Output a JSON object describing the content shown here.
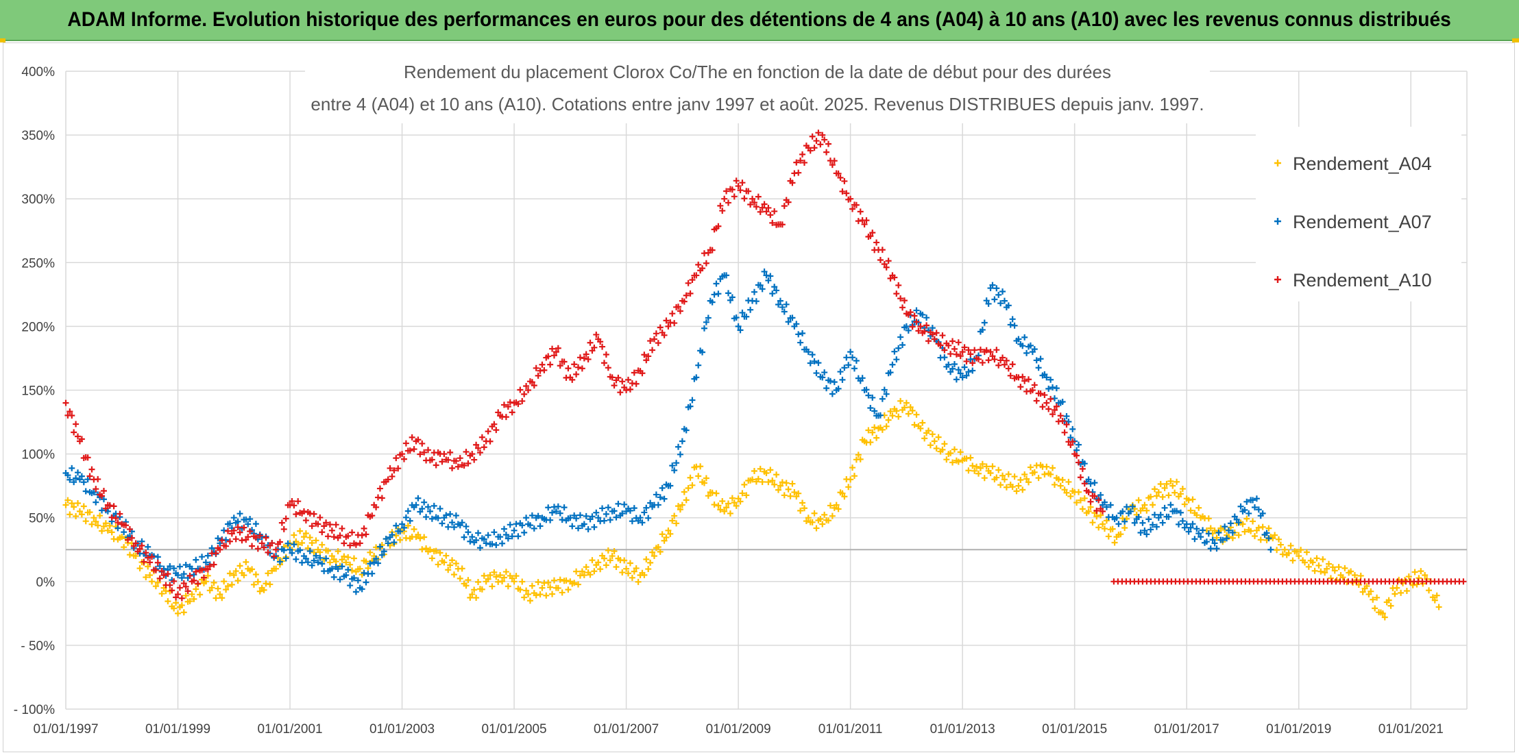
{
  "banner": {
    "text": "ADAM Informe. Evolution historique des performances en euros pour des détentions de 4 ans (A04) à 10 ans (A10) avec les revenus connus distribués"
  },
  "chart_data": {
    "type": "scatter",
    "title_lines": [
      "Rendement du placement Clorox Co/The en fonction de la date de début pour des durées",
      "entre 4 (A04) et 10 ans (A10). Cotations entre janv 1997 et août. 2025. Revenus DISTRIBUES depuis janv. 1997."
    ],
    "xlabel": "",
    "ylabel": "",
    "x_range": [
      1997.0,
      2022.0
    ],
    "ylim": [
      -100,
      400
    ],
    "y_ticks": [
      "400%",
      "350%",
      "300%",
      "250%",
      "200%",
      "150%",
      "100%",
      "50%",
      "0%",
      "- 50%",
      "- 100%"
    ],
    "x_tick_labels": [
      "01/01/1997",
      "01/01/1999",
      "01/01/2001",
      "01/01/2003",
      "01/01/2005",
      "01/01/2007",
      "01/01/2009",
      "01/01/2011",
      "01/01/2013",
      "01/01/2015",
      "01/01/2017",
      "01/01/2019",
      "01/01/2021"
    ],
    "x_tick_years": [
      1997,
      1999,
      2001,
      2003,
      2005,
      2007,
      2009,
      2011,
      2013,
      2015,
      2017,
      2019,
      2021
    ],
    "grid": true,
    "reference_line": 25,
    "legend_position": "right",
    "marker": "+",
    "series": [
      {
        "name": "Rendement_A04",
        "color": "#ffc000",
        "x": [
          1997.0,
          1997.25,
          1997.5,
          1997.75,
          1998.0,
          1998.25,
          1998.5,
          1998.75,
          1999.0,
          1999.25,
          1999.5,
          1999.75,
          2000.0,
          2000.25,
          2000.5,
          2000.75,
          2001.0,
          2001.25,
          2001.5,
          2001.75,
          2002.0,
          2002.25,
          2002.5,
          2002.75,
          2003.0,
          2003.25,
          2003.5,
          2003.75,
          2004.0,
          2004.25,
          2004.5,
          2004.75,
          2005.0,
          2005.25,
          2005.5,
          2005.75,
          2006.0,
          2006.25,
          2006.5,
          2006.75,
          2007.0,
          2007.25,
          2007.5,
          2007.75,
          2008.0,
          2008.25,
          2008.5,
          2008.75,
          2009.0,
          2009.25,
          2009.5,
          2009.75,
          2010.0,
          2010.25,
          2010.5,
          2010.75,
          2011.0,
          2011.25,
          2011.5,
          2011.75,
          2012.0,
          2012.25,
          2012.5,
          2012.75,
          2013.0,
          2013.25,
          2013.5,
          2013.75,
          2014.0,
          2014.25,
          2014.5,
          2014.75,
          2015.0,
          2015.25,
          2015.5,
          2015.75,
          2016.0,
          2016.25,
          2016.5,
          2016.75,
          2017.0,
          2017.25,
          2017.5,
          2017.75,
          2018.0,
          2018.25,
          2018.5,
          2018.75,
          2019.0,
          2019.25,
          2019.5,
          2019.75,
          2020.0,
          2020.25,
          2020.5,
          2020.75,
          2021.0,
          2021.25,
          2021.5
        ],
        "y": [
          60,
          55,
          50,
          40,
          35,
          20,
          5,
          -5,
          -25,
          -10,
          0,
          -10,
          5,
          10,
          -5,
          10,
          30,
          35,
          25,
          20,
          15,
          10,
          20,
          30,
          40,
          35,
          25,
          15,
          10,
          -10,
          0,
          5,
          0,
          -10,
          -5,
          -5,
          0,
          5,
          15,
          20,
          10,
          5,
          20,
          40,
          60,
          90,
          70,
          55,
          65,
          80,
          85,
          75,
          70,
          50,
          45,
          60,
          80,
          110,
          120,
          130,
          140,
          120,
          110,
          100,
          95,
          90,
          85,
          80,
          75,
          85,
          90,
          75,
          70,
          55,
          45,
          35,
          55,
          60,
          70,
          75,
          65,
          50,
          40,
          35,
          45,
          40,
          35,
          25,
          20,
          15,
          10,
          5,
          5,
          -10,
          -25,
          -5,
          0,
          5,
          -20
        ]
      },
      {
        "name": "Rendement_A07",
        "color": "#0070c0",
        "x": [
          1997.0,
          1997.25,
          1997.5,
          1997.75,
          1998.0,
          1998.25,
          1998.5,
          1998.75,
          1999.0,
          1999.25,
          1999.5,
          1999.75,
          2000.0,
          2000.25,
          2000.5,
          2000.75,
          2001.0,
          2001.25,
          2001.5,
          2001.75,
          2002.0,
          2002.25,
          2002.5,
          2002.75,
          2003.0,
          2003.25,
          2003.5,
          2003.75,
          2004.0,
          2004.25,
          2004.5,
          2004.75,
          2005.0,
          2005.25,
          2005.5,
          2005.75,
          2006.0,
          2006.25,
          2006.5,
          2006.75,
          2007.0,
          2007.25,
          2007.5,
          2007.75,
          2008.0,
          2008.25,
          2008.5,
          2008.75,
          2009.0,
          2009.25,
          2009.5,
          2009.75,
          2010.0,
          2010.25,
          2010.5,
          2010.75,
          2011.0,
          2011.25,
          2011.5,
          2011.75,
          2012.0,
          2012.25,
          2012.5,
          2012.75,
          2013.0,
          2013.25,
          2013.5,
          2013.75,
          2014.0,
          2014.25,
          2014.5,
          2014.75,
          2015.0,
          2015.25,
          2015.5,
          2015.75,
          2016.0,
          2016.25,
          2016.5,
          2016.75,
          2017.0,
          2017.25,
          2017.5,
          2017.75,
          2018.0,
          2018.25,
          2018.5
        ],
        "y": [
          85,
          80,
          70,
          55,
          45,
          30,
          20,
          10,
          5,
          10,
          15,
          30,
          50,
          45,
          35,
          20,
          25,
          20,
          15,
          10,
          5,
          -5,
          15,
          30,
          45,
          60,
          55,
          50,
          45,
          35,
          30,
          35,
          40,
          45,
          50,
          55,
          50,
          45,
          50,
          55,
          55,
          50,
          60,
          75,
          110,
          160,
          220,
          240,
          200,
          220,
          240,
          220,
          200,
          180,
          160,
          150,
          180,
          150,
          130,
          170,
          200,
          210,
          190,
          170,
          160,
          175,
          230,
          220,
          190,
          180,
          160,
          140,
          110,
          80,
          60,
          50,
          55,
          40,
          50,
          55,
          45,
          35,
          30,
          40,
          55,
          65,
          25
        ]
      },
      {
        "name": "Rendement_A10",
        "color": "#e01818",
        "x": [
          1997.0,
          1997.25,
          1997.5,
          1997.75,
          1998.0,
          1998.25,
          1998.5,
          1998.75,
          1999.0,
          1999.25,
          1999.5,
          1999.75,
          2000.0,
          2000.25,
          2000.5,
          2000.75,
          2001.0,
          2001.25,
          2001.5,
          2001.75,
          2002.0,
          2002.25,
          2002.5,
          2002.75,
          2003.0,
          2003.25,
          2003.5,
          2003.75,
          2004.0,
          2004.25,
          2004.5,
          2004.75,
          2005.0,
          2005.25,
          2005.5,
          2005.75,
          2006.0,
          2006.25,
          2006.5,
          2006.75,
          2007.0,
          2007.25,
          2007.5,
          2007.75,
          2008.0,
          2008.25,
          2008.5,
          2008.75,
          2009.0,
          2009.25,
          2009.5,
          2009.75,
          2010.0,
          2010.25,
          2010.5,
          2010.75,
          2011.0,
          2011.25,
          2011.5,
          2011.75,
          2012.0,
          2012.25,
          2012.5,
          2012.75,
          2013.0,
          2013.25,
          2013.5,
          2013.75,
          2014.0,
          2014.25,
          2014.5,
          2014.75,
          2015.0,
          2015.25,
          2015.5
        ],
        "y": [
          140,
          110,
          80,
          60,
          45,
          30,
          15,
          5,
          -10,
          0,
          10,
          25,
          40,
          35,
          30,
          25,
          60,
          55,
          45,
          40,
          35,
          30,
          60,
          80,
          100,
          110,
          95,
          100,
          90,
          100,
          110,
          130,
          140,
          150,
          170,
          180,
          160,
          175,
          190,
          160,
          150,
          165,
          190,
          200,
          220,
          240,
          260,
          300,
          310,
          300,
          290,
          280,
          320,
          340,
          350,
          320,
          300,
          280,
          260,
          240,
          210,
          200,
          190,
          185,
          180,
          175,
          180,
          170,
          160,
          150,
          140,
          130,
          100,
          70,
          55
        ]
      }
    ],
    "flat_series": {
      "series_name": "Rendement_A10",
      "x_start": 2015.7,
      "x_end": 2022.0,
      "value": 0
    }
  }
}
